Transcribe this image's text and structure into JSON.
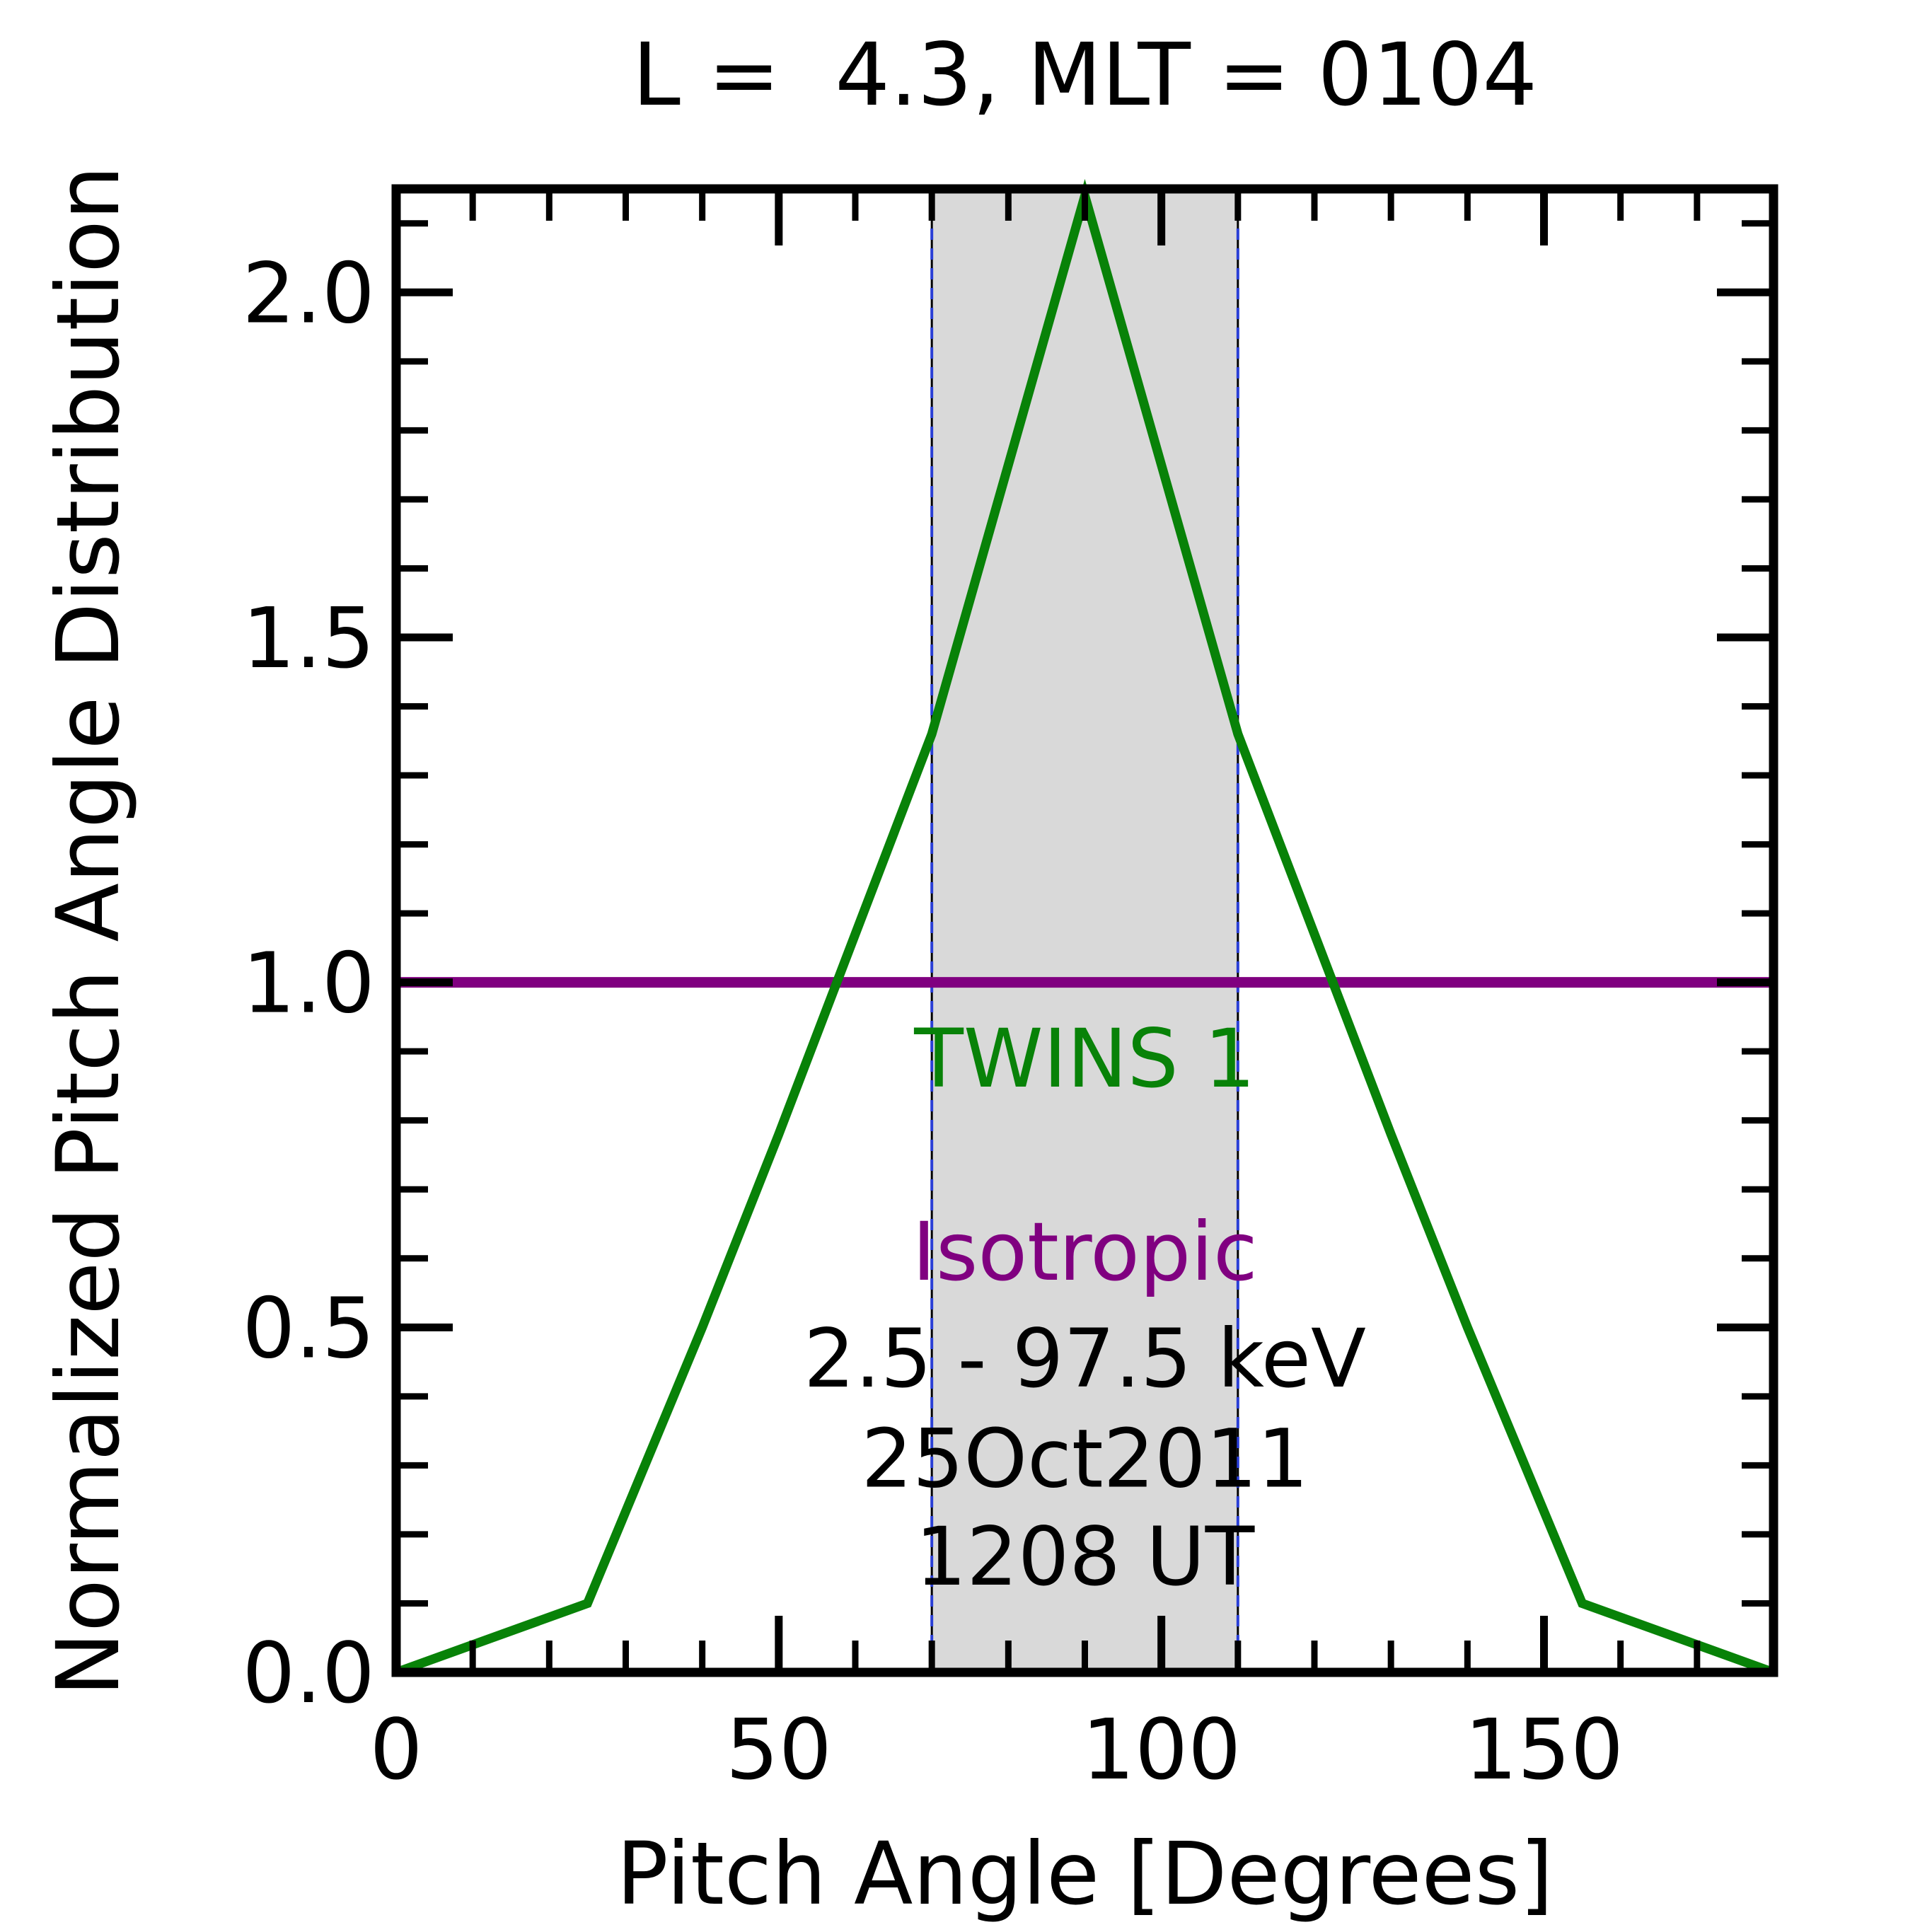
{
  "chart_data": {
    "type": "line",
    "title": "L =  4.3, MLT = 0104",
    "xlabel": "Pitch Angle [Degrees]",
    "ylabel": "Normalized Pitch Angle Distribution",
    "xlim": [
      0,
      180
    ],
    "ylim": [
      0,
      2.15
    ],
    "x_major_ticks": [
      0,
      50,
      100,
      150
    ],
    "x_minor_step": 10,
    "y_major_ticks": [
      0.0,
      0.5,
      1.0,
      1.5,
      2.0
    ],
    "y_minor_step": 0.1,
    "grid": false,
    "legend_position": "in-plot text labels",
    "shaded_band": {
      "x0": 70,
      "x1": 110,
      "color": "#d9d9d9"
    },
    "band_edge_lines": {
      "x": [
        70,
        110
      ],
      "color": "#000000"
    },
    "vlines": {
      "x": [
        0,
        70,
        110,
        180
      ],
      "color": "#2a3fd6",
      "style": "dashed"
    },
    "series": [
      {
        "name": "TWINS 1",
        "color": "#088208",
        "points": [
          [
            0,
            0
          ],
          [
            25,
            0.1
          ],
          [
            40,
            0.5
          ],
          [
            50,
            0.78
          ],
          [
            60,
            1.07
          ],
          [
            70,
            1.36
          ],
          [
            80,
            1.75
          ],
          [
            90,
            2.14
          ],
          [
            100,
            1.75
          ],
          [
            110,
            1.36
          ],
          [
            120,
            1.07
          ],
          [
            130,
            0.78
          ],
          [
            140,
            0.5
          ],
          [
            155,
            0.1
          ],
          [
            180,
            0
          ]
        ]
      },
      {
        "name": "Isotropic",
        "color": "#800080",
        "points": [
          [
            0,
            1.0
          ],
          [
            180,
            1.0
          ]
        ]
      }
    ],
    "annotations": [
      {
        "text": "TWINS 1",
        "color": "#088208",
        "x": 90,
        "y": 0.89
      },
      {
        "text": "Isotropic",
        "color": "#800080",
        "x": 90,
        "y": 0.61
      },
      {
        "text": "2.5 - 97.5 keV",
        "color": "#000000",
        "x": 90,
        "y": 0.455
      },
      {
        "text": "25Oct2011",
        "color": "#000000",
        "x": 90,
        "y": 0.31
      },
      {
        "text": "1208 UT",
        "color": "#000000",
        "x": 90,
        "y": 0.168
      }
    ]
  }
}
